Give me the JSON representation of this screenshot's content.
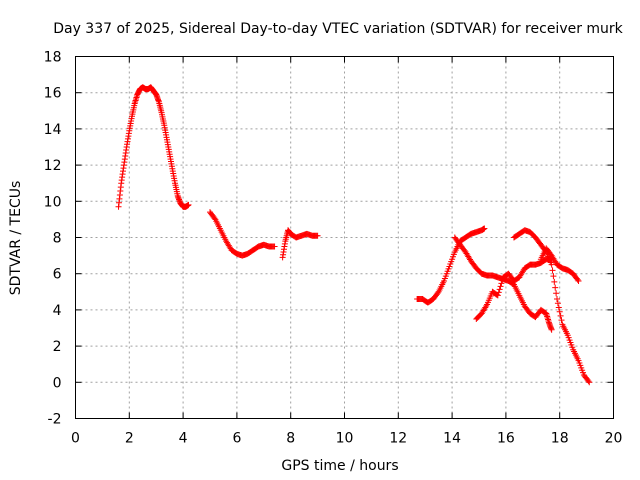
{
  "chart_data": {
    "type": "scatter",
    "title": "Day 337 of 2025, Sidereal Day-to-day VTEC variation (SDTVAR) for receiver murk",
    "xlabel": "GPS time / hours",
    "ylabel": "SDTVAR / TECUs",
    "xlim": [
      0,
      20
    ],
    "ylim": [
      -2,
      18
    ],
    "xticks": [
      0,
      2,
      4,
      6,
      8,
      10,
      12,
      14,
      16,
      18,
      20
    ],
    "yticks": [
      -2,
      0,
      2,
      4,
      6,
      8,
      10,
      12,
      14,
      16,
      18
    ],
    "grid": true,
    "marker": "+",
    "color": "#ff0000",
    "series": [
      {
        "name": "SDTVAR",
        "segments": [
          {
            "x": [
              1.6,
              1.7,
              1.8,
              1.9,
              2.0,
              2.1,
              2.2,
              2.3,
              2.4,
              2.5,
              2.6,
              2.7,
              2.8,
              2.9,
              3.0,
              3.1,
              3.2,
              3.3,
              3.4,
              3.5,
              3.6,
              3.7,
              3.8,
              3.9,
              4.0,
              4.1,
              4.2
            ],
            "y": [
              9.7,
              11.0,
              12.0,
              13.0,
              13.9,
              14.7,
              15.4,
              15.9,
              16.2,
              16.3,
              16.2,
              16.2,
              16.3,
              16.1,
              15.9,
              15.5,
              14.9,
              14.2,
              13.4,
              12.6,
              11.8,
              11.0,
              10.3,
              9.9,
              9.7,
              9.7,
              9.8
            ]
          },
          {
            "x": [
              5.0,
              5.2,
              5.4,
              5.6,
              5.8,
              6.0,
              6.2,
              6.4,
              6.6,
              6.8,
              7.0,
              7.2,
              7.4
            ],
            "y": [
              9.4,
              9.0,
              8.4,
              7.8,
              7.3,
              7.1,
              7.0,
              7.1,
              7.3,
              7.5,
              7.6,
              7.5,
              7.5
            ]
          },
          {
            "x": [
              7.7,
              7.8,
              7.9,
              8.0,
              8.2,
              8.4,
              8.6,
              8.8,
              9.0
            ],
            "y": [
              6.9,
              7.8,
              8.4,
              8.2,
              8.0,
              8.1,
              8.2,
              8.1,
              8.1
            ]
          },
          {
            "x": [
              12.7,
              12.9,
              13.1,
              13.3,
              13.5,
              13.7,
              13.9,
              14.1,
              14.3,
              14.5,
              14.7,
              14.9,
              15.1,
              15.2
            ],
            "y": [
              4.6,
              4.6,
              4.4,
              4.6,
              5.0,
              5.6,
              6.4,
              7.2,
              7.8,
              8.0,
              8.2,
              8.3,
              8.4,
              8.5
            ]
          },
          {
            "x": [
              14.1,
              14.3,
              14.5,
              14.7,
              14.9,
              15.1,
              15.3,
              15.5,
              15.7,
              15.9,
              16.1,
              16.3,
              16.5,
              16.7,
              16.9,
              17.1,
              17.3,
              17.5,
              17.6,
              17.7
            ],
            "y": [
              8.0,
              7.6,
              7.2,
              6.7,
              6.3,
              6.0,
              5.9,
              5.9,
              5.8,
              5.7,
              5.6,
              5.4,
              4.8,
              4.2,
              3.8,
              3.6,
              4.0,
              3.8,
              3.3,
              2.9
            ]
          },
          {
            "x": [
              14.9,
              15.1,
              15.3,
              15.5,
              15.7,
              15.9,
              16.1,
              16.3,
              16.5,
              16.7,
              16.9,
              17.1,
              17.3,
              17.5,
              17.7
            ],
            "y": [
              3.5,
              3.8,
              4.3,
              5.0,
              4.8,
              5.8,
              6.0,
              5.6,
              5.8,
              6.3,
              6.5,
              6.5,
              6.6,
              6.8,
              6.8
            ]
          },
          {
            "x": [
              16.3,
              16.5,
              16.7,
              16.9,
              17.1,
              17.3,
              17.5,
              17.7,
              17.9,
              18.1,
              18.3,
              18.5,
              18.7,
              18.9,
              19.1
            ],
            "y": [
              8.0,
              8.2,
              8.4,
              8.3,
              8.0,
              7.6,
              7.2,
              6.5,
              4.6,
              3.2,
              2.6,
              1.8,
              1.2,
              0.4,
              0.0
            ]
          },
          {
            "x": [
              17.3,
              17.5,
              17.7,
              17.9,
              18.1,
              18.3,
              18.5,
              18.7
            ],
            "y": [
              6.8,
              7.4,
              7.0,
              6.5,
              6.3,
              6.2,
              6.0,
              5.6
            ]
          }
        ]
      }
    ]
  }
}
